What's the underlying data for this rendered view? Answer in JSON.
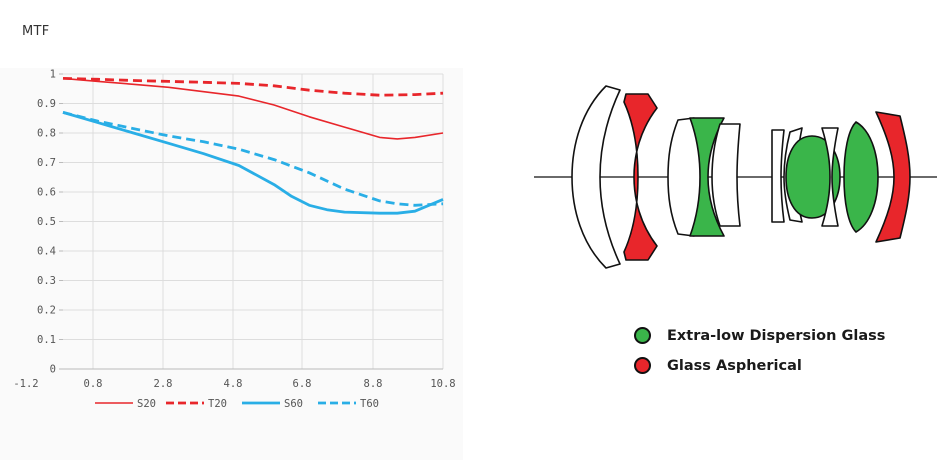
{
  "title": "MTF",
  "chart_data": {
    "type": "line",
    "title": "MTF",
    "xlabel": "",
    "ylabel": "",
    "xlim": [
      -1.2,
      10.8
    ],
    "ylim": [
      0,
      1
    ],
    "x_ticks": [
      "-1.2",
      "0.8",
      "2.8",
      "4.8",
      "6.8",
      "8.8",
      "10.8"
    ],
    "x_tick_values": [
      -1.2,
      0.8,
      2.8,
      4.8,
      6.8,
      8.8,
      10.8
    ],
    "y_ticks": [
      "0",
      "0.1",
      "0.2",
      "0.3",
      "0.4",
      "0.5",
      "0.6",
      "0.7",
      "0.8",
      "0.9",
      "1"
    ],
    "y_tick_values": [
      0,
      0.1,
      0.2,
      0.3,
      0.4,
      0.5,
      0.6,
      0.7,
      0.8,
      0.9,
      1
    ],
    "grid": true,
    "legend_position": "bottom",
    "series": [
      {
        "name": "S20",
        "color": "#e8262b",
        "dash": "solid",
        "width": "thin",
        "x": [
          0,
          1,
          2,
          3,
          4,
          5,
          6,
          7,
          8,
          9,
          9.5,
          10,
          10.8
        ],
        "y": [
          0.985,
          0.975,
          0.965,
          0.955,
          0.94,
          0.925,
          0.895,
          0.855,
          0.82,
          0.785,
          0.78,
          0.785,
          0.8
        ]
      },
      {
        "name": "T20",
        "color": "#e8262b",
        "dash": "dashed",
        "width": "thick",
        "x": [
          0,
          1,
          2,
          3,
          4,
          5,
          6,
          7,
          8,
          9,
          10,
          10.8
        ],
        "y": [
          0.985,
          0.982,
          0.978,
          0.975,
          0.972,
          0.968,
          0.96,
          0.945,
          0.935,
          0.928,
          0.93,
          0.935
        ]
      },
      {
        "name": "S60",
        "color": "#29aee6",
        "dash": "solid",
        "width": "thick",
        "x": [
          0,
          1,
          2,
          3,
          4,
          5,
          6,
          6.5,
          7,
          7.5,
          8,
          9,
          9.5,
          10,
          10.8
        ],
        "y": [
          0.87,
          0.835,
          0.8,
          0.765,
          0.73,
          0.69,
          0.625,
          0.585,
          0.555,
          0.54,
          0.532,
          0.528,
          0.528,
          0.535,
          0.575
        ]
      },
      {
        "name": "T60",
        "color": "#29aee6",
        "dash": "dashed",
        "width": "thick",
        "x": [
          0,
          1,
          2,
          3,
          4,
          5,
          6,
          7,
          8,
          9,
          9.5,
          10,
          10.8
        ],
        "y": [
          0.87,
          0.84,
          0.815,
          0.79,
          0.77,
          0.745,
          0.71,
          0.665,
          0.61,
          0.57,
          0.56,
          0.555,
          0.56
        ]
      }
    ]
  },
  "lens_legend": [
    {
      "label": "Extra-low Dispersion Glass",
      "color": "#3ab54a"
    },
    {
      "label": "Glass Aspherical",
      "color": "#e8262b"
    }
  ]
}
